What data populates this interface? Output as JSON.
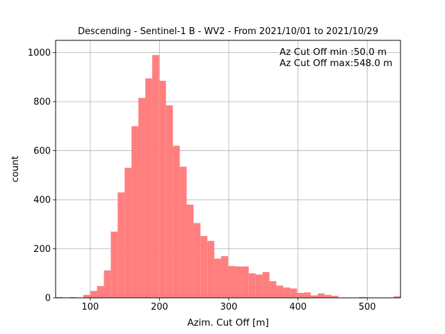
{
  "chart_data": {
    "type": "bar",
    "title": "Descending - Sentinel-1 B - WV2 - From 2021/10/01 to 2021/10/29",
    "xlabel": "Azim. Cut Off [m]",
    "ylabel": "count",
    "xlim": [
      50,
      548
    ],
    "ylim": [
      0,
      1050
    ],
    "xticks": [
      100,
      200,
      300,
      400,
      500
    ],
    "yticks": [
      0,
      200,
      400,
      600,
      800,
      1000
    ],
    "grid": true,
    "bar_color": "#ff7f7f",
    "bin_edges": [
      50,
      59.96,
      69.92,
      79.88,
      89.84,
      99.8,
      109.76,
      119.72,
      129.68,
      139.64,
      149.6,
      159.56,
      169.52,
      179.48,
      189.44,
      199.4,
      209.36,
      219.32,
      229.28,
      239.24,
      249.2,
      259.16,
      269.12,
      279.08,
      289.04,
      299.0,
      308.96,
      318.92,
      328.88,
      338.84,
      348.8,
      358.76,
      368.72,
      378.68,
      388.64,
      398.6,
      408.56,
      418.52,
      428.48,
      438.44,
      448.4,
      458.36,
      468.32,
      478.28,
      488.24,
      498.2,
      508.16,
      518.12,
      528.08,
      538.04,
      548.0
    ],
    "values": [
      3,
      0,
      3,
      0,
      12,
      28,
      48,
      112,
      270,
      430,
      530,
      700,
      815,
      895,
      990,
      885,
      785,
      620,
      535,
      380,
      305,
      252,
      232,
      160,
      170,
      130,
      128,
      128,
      100,
      95,
      105,
      68,
      50,
      42,
      38,
      20,
      22,
      10,
      18,
      12,
      8,
      0,
      0,
      0,
      3,
      0,
      0,
      0,
      0,
      6
    ],
    "annotations": [
      "Az Cut Off min :50.0 m",
      "Az Cut Off max:548.0 m"
    ]
  }
}
